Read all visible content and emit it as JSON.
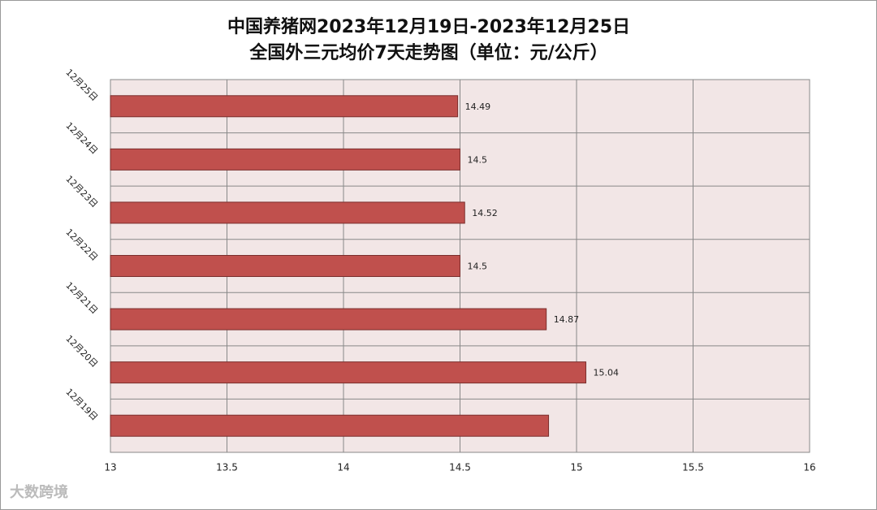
{
  "chart_data": {
    "type": "bar",
    "orientation": "horizontal",
    "title": "中国养猪网2023年12月19日-2023年12月25日",
    "subtitle": "全国外三元均价7天走势图（单位：元/公斤）",
    "categories": [
      "12月25日",
      "12月24日",
      "12月23日",
      "12月22日",
      "12月21日",
      "12月20日",
      "12月19日"
    ],
    "values": [
      14.49,
      14.5,
      14.52,
      14.5,
      14.87,
      15.04,
      14.88
    ],
    "value_labels": [
      "14.49",
      "14.5",
      "14.52",
      "14.5",
      "14.87",
      "15.04",
      null
    ],
    "color": "#c0504d",
    "xlim": [
      13,
      16
    ],
    "xticks": [
      13,
      13.5,
      14,
      14.5,
      15,
      15.5,
      16
    ],
    "grid": true,
    "watermark": "大数跨境"
  }
}
